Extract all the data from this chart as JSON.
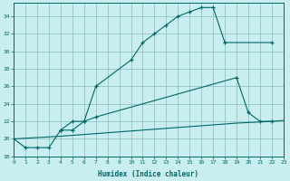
{
  "xlabel": "Humidex (Indice chaleur)",
  "bg_color": "#c8eef0",
  "grid_color": "#88bbbb",
  "line_color": "#006666",
  "line1_x": [
    0,
    1,
    2,
    3,
    4,
    5,
    6,
    7,
    10,
    11,
    12,
    13,
    14,
    15,
    16,
    17,
    18,
    22
  ],
  "line1_y": [
    20,
    19,
    19,
    19,
    21,
    21,
    22,
    26,
    29,
    31,
    32,
    33,
    34,
    34.5,
    35,
    35,
    31,
    31
  ],
  "line2_x": [
    4,
    5,
    6,
    7,
    19,
    20,
    21,
    22
  ],
  "line2_y": [
    21,
    22,
    22,
    22.5,
    27,
    23,
    22,
    22
  ],
  "line3_x": [
    0,
    4,
    7,
    11,
    15,
    19,
    22,
    23
  ],
  "line3_y": [
    20,
    20.3,
    20.6,
    21.0,
    21.4,
    21.8,
    22.0,
    22.1
  ],
  "xlim": [
    0,
    23
  ],
  "ylim": [
    18,
    35.5
  ],
  "yticks": [
    18,
    20,
    22,
    24,
    26,
    28,
    30,
    32,
    34
  ],
  "xticks": [
    0,
    1,
    2,
    3,
    4,
    5,
    6,
    7,
    8,
    9,
    10,
    11,
    12,
    13,
    14,
    15,
    16,
    17,
    18,
    19,
    20,
    21,
    22,
    23
  ]
}
